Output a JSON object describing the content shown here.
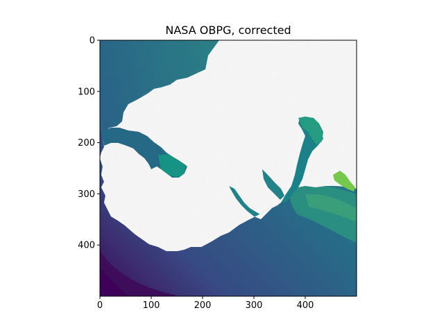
{
  "chart_data": {
    "type": "heatmap",
    "title": "NASA OBPG, corrected",
    "xlabel": "",
    "ylabel": "",
    "xlim": [
      0,
      500
    ],
    "ylim": [
      500,
      0
    ],
    "x_ticks": [
      0,
      100,
      200,
      300,
      400
    ],
    "y_ticks": [
      0,
      100,
      200,
      300,
      400
    ],
    "grid": false,
    "colormap": "viridis",
    "land_color": "#ffffff",
    "colors": {
      "deep_purple": "#440154",
      "blue": "#3b528b",
      "teal": "#21918c",
      "green": "#5ec962",
      "yellow": "#fde725"
    }
  }
}
